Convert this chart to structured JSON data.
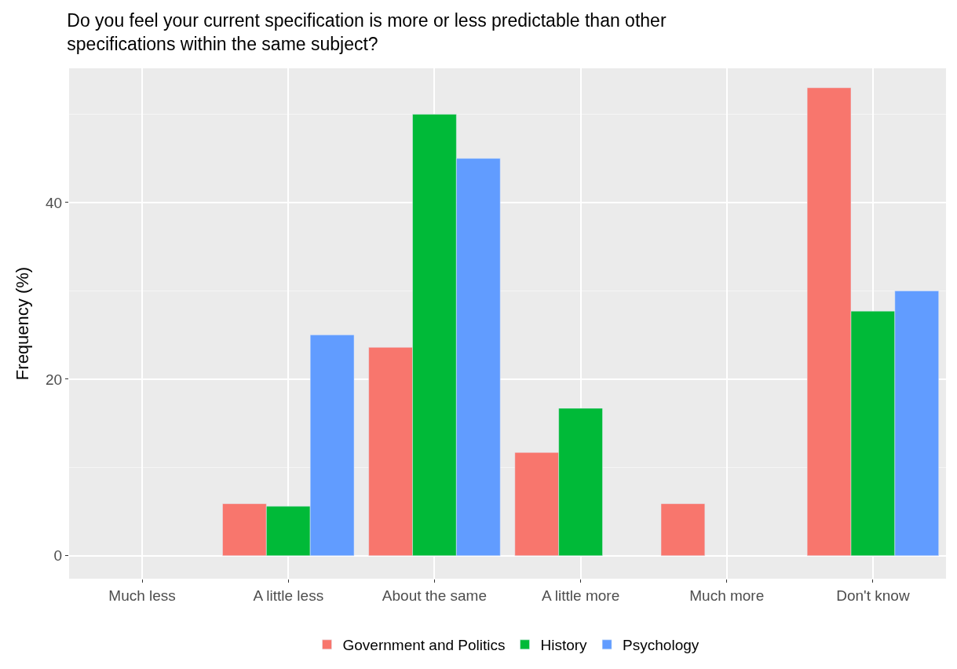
{
  "chart_data": {
    "type": "bar",
    "title": "Do you feel your current specification is more or less predictable than other\nspecifications within the same subject?",
    "ylabel": "Frequency (%)",
    "categories": [
      "Much less",
      "A little less",
      "About the same",
      "A little more",
      "Much more",
      "Don't know"
    ],
    "series": [
      {
        "name": "Government and Politics",
        "color": "#f8766d",
        "values": [
          null,
          5.9,
          23.6,
          11.7,
          5.9,
          53.0
        ]
      },
      {
        "name": "History",
        "color": "#00ba38",
        "values": [
          null,
          5.6,
          50.0,
          16.7,
          null,
          27.7
        ]
      },
      {
        "name": "Psychology",
        "color": "#619cff",
        "values": [
          null,
          25.0,
          45.0,
          null,
          null,
          30.0
        ]
      }
    ],
    "ylim": [
      -2.6,
      55.2
    ],
    "yticks": [
      0,
      20,
      40
    ],
    "grid": true,
    "legend": "bottom"
  }
}
